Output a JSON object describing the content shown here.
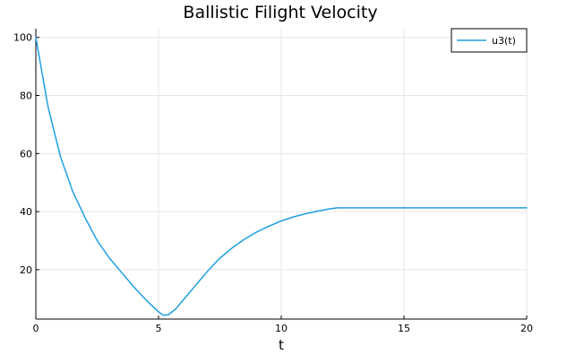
{
  "chart_data": {
    "type": "line",
    "title": "Ballistic Filight Velocity",
    "xlabel": "t",
    "ylabel": "",
    "xlim": [
      0,
      20
    ],
    "ylim": [
      3,
      103
    ],
    "xticks": [
      0,
      5,
      10,
      15,
      20
    ],
    "yticks": [
      20,
      40,
      60,
      80,
      100
    ],
    "xtick_labels": [
      "0",
      "5",
      "10",
      "15",
      "20"
    ],
    "ytick_labels": [
      "20",
      "40",
      "60",
      "80",
      "100"
    ],
    "grid": true,
    "legend_position": "top-right",
    "series": [
      {
        "name": "u3(t)",
        "color": "#1f9fe3",
        "x": [
          0,
          0.5,
          1,
          1.5,
          2,
          2.5,
          3,
          3.5,
          4,
          4.5,
          5,
          5.2,
          5.4,
          5.7,
          6,
          6.5,
          7,
          7.5,
          8,
          8.5,
          9,
          9.5,
          10,
          10.5,
          11,
          11.5,
          12,
          12.3,
          13,
          14,
          15,
          16,
          17,
          18,
          19,
          20
        ],
        "y": [
          100,
          76,
          59,
          47,
          38,
          30,
          24,
          19,
          14,
          9.5,
          5.5,
          4.3,
          4.5,
          6.5,
          9.5,
          14.5,
          19.5,
          24,
          27.5,
          30.5,
          33,
          35,
          36.8,
          38.2,
          39.3,
          40.2,
          41,
          41.3,
          41.3,
          41.3,
          41.3,
          41.3,
          41.3,
          41.3,
          41.3,
          41.3
        ]
      }
    ]
  }
}
